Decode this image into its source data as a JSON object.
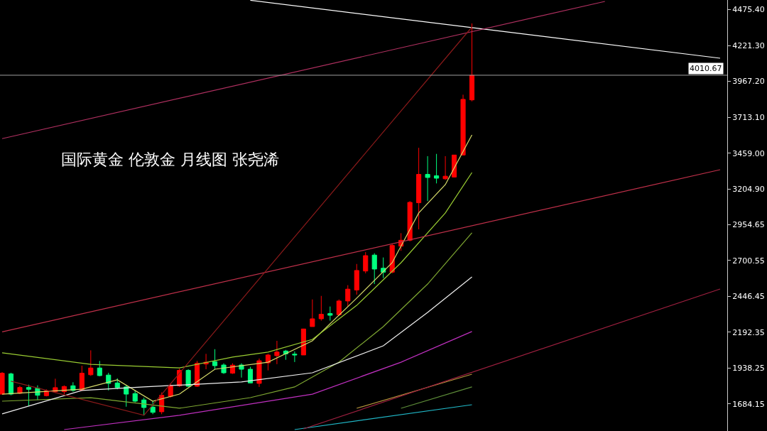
{
  "chart_data": {
    "type": "candlestick",
    "title": "国际黄金 伦敦金 月线图 张尧浠",
    "categories": [
      null,
      null,
      null,
      null,
      null,
      null,
      null,
      null,
      null,
      null,
      null,
      null,
      null,
      null,
      null,
      null,
      null,
      null,
      null,
      null,
      null,
      null,
      null,
      null,
      null,
      null,
      null,
      null,
      null,
      null,
      null,
      null,
      null,
      null,
      null,
      null,
      null,
      null,
      null,
      null,
      null,
      null,
      null,
      null,
      null,
      null,
      null,
      null,
      null,
      null,
      null,
      null,
      null,
      null,
      null,
      null,
      null,
      null,
      null,
      null,
      null,
      null,
      null,
      null,
      null,
      null,
      null,
      null,
      null,
      null,
      null,
      null,
      null,
      null,
      null,
      null,
      null,
      null,
      null,
      null,
      null,
      null
    ],
    "ohlc": [
      [
        1754,
        1910,
        1749,
        1902
      ],
      [
        1897,
        1905,
        1746,
        1754
      ],
      [
        1760,
        1813,
        1754,
        1801
      ],
      [
        1801,
        1821,
        1670,
        1788
      ],
      [
        1796,
        1816,
        1713,
        1746
      ],
      [
        1743,
        1788,
        1738,
        1776
      ],
      [
        1771,
        1863,
        1763,
        1800
      ],
      [
        1771,
        1816,
        1754,
        1808
      ],
      [
        1813,
        1838,
        1771,
        1780
      ],
      [
        1783,
        1955,
        1776,
        1902
      ],
      [
        1891,
        2064,
        1883,
        1939
      ],
      [
        1939,
        1989,
        1880,
        1885
      ],
      [
        1889,
        1905,
        1780,
        1830
      ],
      [
        1833,
        1866,
        1788,
        1800
      ],
      [
        1805,
        1816,
        1665,
        1754
      ],
      [
        1758,
        1780,
        1696,
        1704
      ],
      [
        1713,
        1729,
        1604,
        1659
      ],
      [
        1662,
        1704,
        1612,
        1625
      ],
      [
        1629,
        1766,
        1612,
        1746
      ],
      [
        1738,
        1830,
        1729,
        1813
      ],
      [
        1813,
        1934,
        1805,
        1922
      ],
      [
        1922,
        1930,
        1805,
        1810
      ],
      [
        1810,
        1989,
        1805,
        1972
      ],
      [
        1967,
        2039,
        1930,
        1980
      ],
      [
        1984,
        2072,
        1930,
        1955
      ],
      [
        1960,
        1972,
        1897,
        1905
      ],
      [
        1902,
        1972,
        1897,
        1959
      ],
      [
        1960,
        1972,
        1871,
        1930
      ],
      [
        1930,
        1947,
        1830,
        1833
      ],
      [
        1830,
        2006,
        1805,
        1990
      ],
      [
        1975,
        2039,
        1922,
        2031
      ],
      [
        2026,
        2131,
        1966,
        2052
      ],
      [
        2059,
        2067,
        1997,
        2039
      ],
      [
        2037,
        2056,
        1981,
        2031
      ],
      [
        2031,
        2217,
        2031,
        2215
      ],
      [
        2232,
        2424,
        2232,
        2287
      ],
      [
        2287,
        2449,
        2274,
        2319
      ],
      [
        2324,
        2374,
        2274,
        2312
      ],
      [
        2316,
        2424,
        2307,
        2413
      ],
      [
        2413,
        2525,
        2374,
        2497
      ],
      [
        2491,
        2675,
        2458,
        2629
      ],
      [
        2625,
        2759,
        2609,
        2734
      ],
      [
        2738,
        2751,
        2533,
        2639
      ],
      [
        2645,
        2721,
        2575,
        2617
      ],
      [
        2617,
        2818,
        2609,
        2806
      ],
      [
        2801,
        2893,
        2768,
        2843
      ],
      [
        2843,
        3120,
        2835,
        3111
      ],
      [
        3108,
        3497,
        2920,
        3309
      ],
      [
        3309,
        3438,
        3120,
        3287
      ],
      [
        3299,
        3454,
        3245,
        3282
      ],
      [
        3278,
        3438,
        3270,
        3296
      ],
      [
        3290,
        3446,
        3287,
        3446
      ],
      [
        3446,
        3873,
        3446,
        3840
      ],
      [
        3836,
        4377,
        3826,
        4010.67
      ],
      null,
      null,
      null,
      null,
      null,
      null,
      null,
      null,
      null,
      null,
      null,
      null,
      null,
      null,
      null,
      null,
      null,
      null,
      null,
      null,
      null,
      null,
      null,
      null,
      null,
      null,
      null,
      null
    ],
    "colors": [
      "#ff0000",
      "#00ff7f",
      "#ff0000",
      "#00ff7f",
      "#00ff7f",
      "#ff0000",
      "#ff0000",
      "#ff0000",
      "#00ff7f",
      "#ff0000",
      "#ff0000",
      "#00ff7f",
      "#00ff7f",
      "#00ff7f",
      "#00ff7f",
      "#00ff7f",
      "#00ff7f",
      "#00ff7f",
      "#ff0000",
      "#ff0000",
      "#ff0000",
      "#00ff7f",
      "#ff0000",
      "#ff0000",
      "#00ff7f",
      "#00ff7f",
      "#ff0000",
      "#00ff7f",
      "#00ff7f",
      "#ff0000",
      "#ff0000",
      "#ff0000",
      "#00ff7f",
      "#00ff7f",
      "#ff0000",
      "#ff0000",
      "#ff0000",
      "#00ff7f",
      "#ff0000",
      "#ff0000",
      "#ff0000",
      "#ff0000",
      "#00ff7f",
      "#00ff7f",
      "#ff0000",
      "#ff0000",
      "#ff0000",
      "#ff0000",
      "#00ff7f",
      "#00ff7f",
      "#ff0000",
      "#ff0000",
      "#ff0000",
      "#ff0000",
      null,
      null,
      null,
      null,
      null,
      null,
      null,
      null,
      null,
      null,
      null,
      null,
      null,
      null,
      null,
      null,
      null,
      null,
      null,
      null,
      null,
      null,
      null,
      null,
      null,
      null,
      null,
      null
    ],
    "series": [
      {
        "type": "line",
        "color": "#d8dc6a",
        "values": [
          1754,
          null,
          null,
          null,
          null,
          null,
          null,
          null,
          null,
          1789,
          null,
          null,
          null,
          1855,
          null,
          null,
          null,
          1704,
          null,
          null,
          1754,
          null,
          null,
          null,
          1930,
          null,
          null,
          null,
          null,
          null,
          1980,
          null,
          null,
          null,
          null,
          2131,
          null,
          null,
          null,
          null,
          2433,
          null,
          null,
          null,
          2684,
          null,
          null,
          3036,
          null,
          null,
          3237,
          null,
          null,
          3588,
          null,
          null,
          null,
          null,
          null,
          null,
          null,
          null,
          null,
          null,
          null,
          null,
          null,
          null,
          null,
          null,
          null,
          null,
          null,
          null,
          null,
          null,
          null,
          null,
          null,
          null,
          null,
          null
        ]
      },
      {
        "type": "line",
        "color": "#9acd32",
        "values": [
          2046,
          null,
          null,
          null,
          null,
          null,
          null,
          null,
          null,
          null,
          1965,
          null,
          null,
          null,
          null,
          null,
          null,
          null,
          null,
          null,
          1940,
          null,
          null,
          null,
          null,
          null,
          2016,
          null,
          null,
          null,
          2051,
          null,
          null,
          null,
          null,
          2141,
          null,
          null,
          null,
          null,
          2382,
          null,
          null,
          null,
          null,
          2684,
          null,
          null,
          null,
          null,
          3036,
          null,
          null,
          3322,
          null,
          null,
          null,
          null,
          null,
          null,
          null,
          null,
          null,
          null,
          null,
          null,
          null,
          null,
          null,
          null,
          null,
          null,
          null,
          null,
          null,
          null,
          null,
          null,
          null,
          null,
          null,
          null
        ]
      },
      {
        "type": "line",
        "color": "#7fa832",
        "values": [
          1704,
          null,
          null,
          null,
          null,
          null,
          null,
          null,
          null,
          null,
          1729,
          null,
          null,
          null,
          null,
          null,
          null,
          null,
          null,
          null,
          1654,
          null,
          null,
          null,
          null,
          null,
          null,
          null,
          1729,
          null,
          null,
          null,
          null,
          1805,
          null,
          null,
          null,
          null,
          1980,
          null,
          null,
          null,
          null,
          2232,
          null,
          null,
          null,
          null,
          2533,
          null,
          null,
          null,
          null,
          2895,
          null,
          null,
          null,
          null,
          null,
          null,
          null,
          null,
          null,
          null,
          null,
          null,
          null,
          null,
          null,
          null,
          null,
          null,
          null,
          null,
          null,
          null,
          null,
          null,
          null,
          null,
          null,
          null
        ]
      },
      {
        "type": "line",
        "color": "#f0f0f0",
        "values": [
          1614,
          null,
          null,
          null,
          null,
          null,
          null,
          null,
          null,
          1780,
          null,
          null,
          null,
          null,
          null,
          null,
          1805,
          null,
          null,
          null,
          null,
          null,
          null,
          null,
          null,
          null,
          null,
          1840,
          null,
          null,
          null,
          null,
          null,
          null,
          null,
          1905,
          null,
          null,
          null,
          null,
          null,
          null,
          null,
          2096,
          null,
          null,
          null,
          null,
          2332,
          null,
          null,
          null,
          null,
          2583,
          null,
          null,
          null,
          null,
          null,
          null,
          null,
          null,
          null,
          null,
          null,
          null,
          null,
          null,
          null,
          null,
          null,
          null,
          null,
          null,
          null,
          null,
          null,
          null,
          null,
          null,
          null,
          null
        ]
      },
      {
        "type": "line",
        "color": "#c030c0",
        "values": [
          null,
          null,
          null,
          null,
          null,
          null,
          null,
          1503,
          null,
          null,
          null,
          null,
          null,
          null,
          null,
          null,
          null,
          null,
          null,
          null,
          1604,
          null,
          null,
          null,
          null,
          null,
          null,
          null,
          null,
          null,
          null,
          null,
          null,
          null,
          null,
          1754,
          null,
          null,
          null,
          null,
          null,
          null,
          null,
          null,
          null,
          1980,
          null,
          null,
          null,
          null,
          null,
          null,
          null,
          2197,
          null,
          null,
          null,
          null,
          null,
          null,
          null,
          null,
          null,
          null,
          null,
          null,
          null,
          null,
          null,
          null,
          null,
          null,
          null,
          null,
          null,
          null,
          null,
          null,
          null,
          null,
          null,
          null
        ]
      },
      {
        "type": "line",
        "color": "#b8963b",
        "values": [
          null,
          null,
          null,
          null,
          null,
          null,
          null,
          null,
          null,
          null,
          null,
          null,
          null,
          null,
          null,
          null,
          null,
          null,
          null,
          null,
          null,
          null,
          null,
          null,
          null,
          null,
          null,
          null,
          null,
          null,
          null,
          null,
          null,
          null,
          null,
          null,
          null,
          null,
          null,
          null,
          1654,
          null,
          null,
          null,
          null,
          null,
          null,
          null,
          null,
          null,
          null,
          null,
          null,
          1895,
          null,
          null,
          null,
          null,
          null,
          null,
          null,
          null,
          null,
          null,
          null,
          null,
          null,
          null,
          null,
          null,
          null,
          null,
          null,
          null,
          null,
          null,
          null,
          null,
          null,
          null,
          null,
          null
        ]
      },
      {
        "type": "line",
        "color": "#5f8f3a",
        "values": [
          null,
          null,
          null,
          null,
          null,
          null,
          null,
          null,
          null,
          null,
          null,
          null,
          null,
          null,
          null,
          null,
          null,
          null,
          null,
          null,
          null,
          null,
          null,
          null,
          null,
          null,
          null,
          null,
          null,
          null,
          null,
          null,
          null,
          null,
          null,
          null,
          null,
          null,
          null,
          null,
          null,
          null,
          null,
          null,
          null,
          1654,
          null,
          null,
          null,
          null,
          null,
          null,
          null,
          1805,
          null,
          null,
          null,
          null,
          null,
          null,
          null,
          null,
          null,
          null,
          null,
          null,
          null,
          null,
          null,
          null,
          null,
          null,
          null,
          null,
          null,
          null,
          null,
          null,
          null,
          null,
          null,
          null
        ]
      },
      {
        "type": "line",
        "color": "#20b8c8",
        "values": [
          null,
          null,
          null,
          null,
          null,
          null,
          null,
          null,
          null,
          null,
          null,
          null,
          null,
          null,
          null,
          null,
          null,
          null,
          null,
          null,
          null,
          null,
          null,
          null,
          null,
          null,
          null,
          null,
          null,
          null,
          null,
          null,
          null,
          1503,
          null,
          null,
          null,
          null,
          null,
          null,
          null,
          null,
          null,
          null,
          null,
          null,
          null,
          null,
          null,
          null,
          null,
          null,
          null,
          1679,
          null,
          null,
          null,
          null,
          null,
          null,
          null,
          null,
          null,
          null,
          null,
          null,
          null,
          null,
          null,
          null,
          null,
          null,
          null,
          null,
          null,
          null,
          null,
          null,
          null,
          null,
          null,
          null
        ]
      },
      {
        "type": "line",
        "color": "#ffffff",
        "values": [
          null,
          null,
          null,
          null,
          null,
          null,
          null,
          null,
          null,
          null,
          null,
          null,
          null,
          null,
          null,
          null,
          null,
          null,
          null,
          null,
          null,
          null,
          null,
          null,
          null,
          null,
          null,
          null,
          4541,
          null,
          null,
          null,
          null,
          null,
          null,
          null,
          null,
          null,
          null,
          null,
          null,
          null,
          null,
          null,
          null,
          null,
          null,
          null,
          null,
          null,
          null,
          null,
          null,
          null,
          null,
          null,
          null,
          null,
          null,
          null,
          null,
          null,
          null,
          null,
          null,
          null,
          null,
          null,
          null,
          null,
          null,
          null,
          null,
          null,
          null,
          null,
          null,
          null,
          null,
          null,
          null,
          4131
        ]
      },
      {
        "type": "line",
        "color": "#b03060",
        "values": [
          3562,
          null,
          null,
          null,
          null,
          null,
          null,
          null,
          null,
          null,
          null,
          null,
          null,
          null,
          null,
          null,
          null,
          null,
          null,
          null,
          null,
          null,
          null,
          null,
          null,
          null,
          null,
          null,
          null,
          null,
          null,
          null,
          null,
          null,
          null,
          null,
          null,
          null,
          null,
          null,
          null,
          null,
          null,
          null,
          null,
          null,
          null,
          null,
          null,
          null,
          null,
          null,
          null,
          null,
          null,
          null,
          null,
          null,
          null,
          null,
          null,
          null,
          null,
          null,
          null,
          null,
          null,
          null,
          4533,
          null,
          null,
          null,
          null,
          null,
          null,
          null,
          null,
          null,
          null,
          null,
          null,
          null
        ]
      },
      {
        "type": "line",
        "color": "#c0304a",
        "values": [
          2195,
          null,
          null,
          null,
          null,
          null,
          null,
          null,
          null,
          null,
          null,
          null,
          null,
          null,
          null,
          null,
          null,
          null,
          null,
          null,
          null,
          null,
          null,
          null,
          null,
          null,
          null,
          null,
          null,
          null,
          null,
          null,
          null,
          null,
          null,
          null,
          null,
          null,
          null,
          null,
          null,
          null,
          null,
          null,
          null,
          null,
          null,
          null,
          null,
          null,
          null,
          null,
          null,
          null,
          null,
          null,
          null,
          null,
          null,
          null,
          null,
          null,
          null,
          null,
          null,
          null,
          null,
          null,
          null,
          null,
          null,
          null,
          null,
          null,
          null,
          null,
          null,
          null,
          null,
          null,
          null,
          3342
        ]
      },
      {
        "type": "line",
        "color": "#a02040",
        "values": [
          null,
          null,
          null,
          null,
          null,
          null,
          null,
          null,
          null,
          null,
          null,
          null,
          null,
          null,
          null,
          null,
          null,
          null,
          null,
          null,
          null,
          null,
          null,
          null,
          null,
          null,
          null,
          null,
          null,
          null,
          null,
          null,
          null,
          null,
          1508,
          null,
          null,
          null,
          null,
          null,
          null,
          null,
          null,
          null,
          null,
          null,
          null,
          null,
          null,
          null,
          null,
          null,
          null,
          null,
          null,
          null,
          null,
          null,
          null,
          null,
          null,
          null,
          null,
          null,
          null,
          null,
          null,
          null,
          null,
          null,
          null,
          null,
          null,
          null,
          null,
          null,
          null,
          null,
          null,
          null,
          null,
          2498
        ]
      },
      {
        "type": "line",
        "color": "#8b1a1a",
        "values": [
          null,
          1845,
          null,
          null,
          null,
          null,
          null,
          null,
          null,
          null,
          null,
          null,
          null,
          null,
          null,
          null,
          1604,
          null,
          null,
          null,
          null,
          null,
          null,
          null,
          null,
          null,
          null,
          null,
          null,
          null,
          null,
          null,
          null,
          null,
          null,
          null,
          null,
          null,
          null,
          null,
          null,
          null,
          null,
          null,
          null,
          null,
          null,
          null,
          null,
          null,
          null,
          null,
          null,
          4352,
          null,
          null,
          null,
          null,
          null,
          null,
          null,
          null,
          null,
          null,
          null,
          null,
          null,
          null,
          null,
          null,
          null,
          null,
          null,
          null,
          null,
          null,
          null,
          null,
          null,
          null,
          null,
          null
        ]
      }
    ],
    "ref_lines": [
      {
        "axis": "y",
        "value": 4010.67,
        "label": "4010.67",
        "color": "#a0a0a0"
      }
    ],
    "ylim": [
      1493,
      4543
    ],
    "yticks": [
      {
        "value": 4475.4,
        "label": "4475.40"
      },
      {
        "value": 4221.3,
        "label": "4221.30"
      },
      {
        "value": 3967.2,
        "label": "3967.20"
      },
      {
        "value": 3713.1,
        "label": "3713.10"
      },
      {
        "value": 3459,
        "label": "3459.00"
      },
      {
        "value": 3204.9,
        "label": "3204.90"
      },
      {
        "value": 2954.65,
        "label": "2954.65"
      },
      {
        "value": 2700.55,
        "label": "2700.55"
      },
      {
        "value": 2446.45,
        "label": "2446.45"
      },
      {
        "value": 2192.35,
        "label": "2192.35"
      },
      {
        "value": 1938.25,
        "label": "1938.25"
      },
      {
        "value": 1684.15,
        "label": "1684.15"
      }
    ],
    "grid": false,
    "tick_labels": "y"
  }
}
